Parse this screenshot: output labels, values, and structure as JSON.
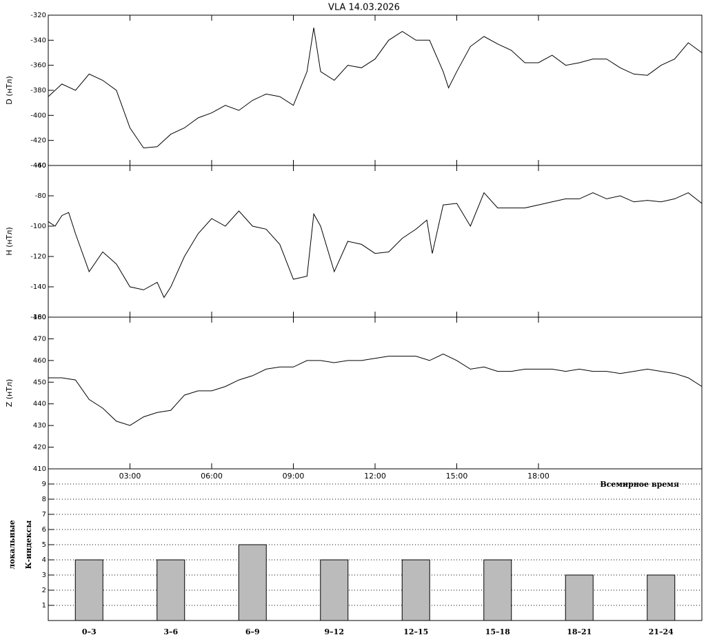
{
  "chart_data": [
    {
      "type": "line",
      "title": "VLA   14.03.2026",
      "ylabel": "D (нТл)",
      "color": "#000000",
      "xlim": [
        0,
        24
      ],
      "ylim": [
        -440,
        -320
      ],
      "yticks": [
        -440,
        -420,
        -400,
        -380,
        -360,
        -340,
        -320
      ],
      "x": [
        0,
        0.5,
        1,
        1.5,
        2,
        2.5,
        3,
        3.5,
        4,
        4.5,
        5,
        5.5,
        6,
        6.5,
        7,
        7.5,
        8,
        8.5,
        9,
        9.5,
        9.75,
        10,
        10.5,
        11,
        11.5,
        12,
        12.5,
        13,
        13.5,
        14,
        14.5,
        14.7,
        15,
        15.5,
        16,
        16.5,
        17,
        17.5,
        18,
        18.5,
        19,
        19.5,
        20,
        20.5,
        21,
        21.5,
        22,
        22.5,
        23,
        23.5,
        24
      ],
      "values": [
        -385,
        -375,
        -380,
        -367,
        -372,
        -380,
        -410,
        -426,
        -425,
        -415,
        -410,
        -402,
        -398,
        -392,
        -396,
        -388,
        -383,
        -385,
        -392,
        -365,
        -330,
        -365,
        -372,
        -360,
        -362,
        -355,
        -340,
        -333,
        -340,
        -340,
        -365,
        -378,
        -365,
        -345,
        -337,
        -343,
        -348,
        -358,
        -358,
        -352,
        -360,
        -358,
        -355,
        -355,
        -362,
        -367,
        -368,
        -360,
        -355,
        -342,
        -350
      ]
    },
    {
      "type": "line",
      "ylabel": "H (нТл)",
      "color": "#000000",
      "xlim": [
        0,
        24
      ],
      "ylim": [
        -160,
        -60
      ],
      "yticks": [
        -160,
        -140,
        -120,
        -100,
        -80,
        -60
      ],
      "x": [
        0,
        0.25,
        0.5,
        0.75,
        1,
        1.5,
        2,
        2.5,
        3,
        3.5,
        4,
        4.25,
        4.5,
        5,
        5.5,
        6,
        6.5,
        7,
        7.5,
        8,
        8.5,
        9,
        9.5,
        9.75,
        10,
        10.5,
        11,
        11.5,
        12,
        12.5,
        13,
        13.5,
        13.9,
        14.1,
        14.5,
        15,
        15.5,
        16,
        16.5,
        17,
        17.5,
        18,
        18.5,
        19,
        19.5,
        20,
        20.5,
        21,
        21.5,
        22,
        22.5,
        23,
        23.5,
        24
      ],
      "values": [
        -97,
        -100,
        -93,
        -91,
        -105,
        -130,
        -117,
        -125,
        -140,
        -142,
        -137,
        -147,
        -140,
        -120,
        -105,
        -95,
        -100,
        -90,
        -100,
        -102,
        -112,
        -135,
        -133,
        -92,
        -100,
        -130,
        -110,
        -112,
        -118,
        -117,
        -108,
        -102,
        -96,
        -118,
        -86,
        -85,
        -100,
        -78,
        -88,
        -88,
        -88,
        -86,
        -84,
        -82,
        -82,
        -78,
        -82,
        -80,
        -84,
        -83,
        -84,
        -82,
        -78,
        -85
      ]
    },
    {
      "type": "line",
      "ylabel": "Z (нТл)",
      "xlabel": "Всемирное время",
      "color": "#000000",
      "xlim": [
        0,
        24
      ],
      "ylim": [
        410,
        480
      ],
      "yticks": [
        410,
        420,
        430,
        440,
        450,
        460,
        470,
        480
      ],
      "xticks": [
        {
          "value": 3,
          "label": "03:00"
        },
        {
          "value": 6,
          "label": "06:00"
        },
        {
          "value": 9,
          "label": "09:00"
        },
        {
          "value": 12,
          "label": "12:00"
        },
        {
          "value": 15,
          "label": "15:00"
        },
        {
          "value": 18,
          "label": "18:00"
        }
      ],
      "x": [
        0,
        0.5,
        1,
        1.5,
        2,
        2.5,
        3,
        3.5,
        4,
        4.5,
        5,
        5.5,
        6,
        6.5,
        7,
        7.5,
        8,
        8.5,
        9,
        9.5,
        10,
        10.5,
        11,
        11.5,
        12,
        12.5,
        13,
        13.5,
        14,
        14.5,
        15,
        15.5,
        16,
        16.5,
        17,
        17.5,
        18,
        18.5,
        19,
        19.5,
        20,
        20.5,
        21,
        21.5,
        22,
        22.5,
        23,
        23.5,
        24
      ],
      "values": [
        452,
        452,
        451,
        442,
        438,
        432,
        430,
        434,
        436,
        437,
        444,
        446,
        446,
        448,
        451,
        453,
        456,
        457,
        457,
        460,
        460,
        459,
        460,
        460,
        461,
        462,
        462,
        462,
        460,
        463,
        460,
        456,
        457,
        455,
        455,
        456,
        456,
        456,
        455,
        456,
        455,
        455,
        454,
        455,
        456,
        455,
        454,
        452,
        448
      ]
    },
    {
      "type": "bar",
      "ylabel": [
        "локальные",
        "К-индексы"
      ],
      "color": "#bbbbbb",
      "grid": true,
      "categories": [
        "0–3",
        "3–6",
        "6–9",
        "9–12",
        "12–15",
        "15–18",
        "18–21",
        "21–24"
      ],
      "values": [
        4,
        4,
        5,
        4,
        4,
        4,
        3,
        3
      ],
      "ylim": [
        0,
        10
      ],
      "yticks": [
        1,
        2,
        3,
        4,
        5,
        6,
        7,
        8,
        9
      ]
    }
  ]
}
